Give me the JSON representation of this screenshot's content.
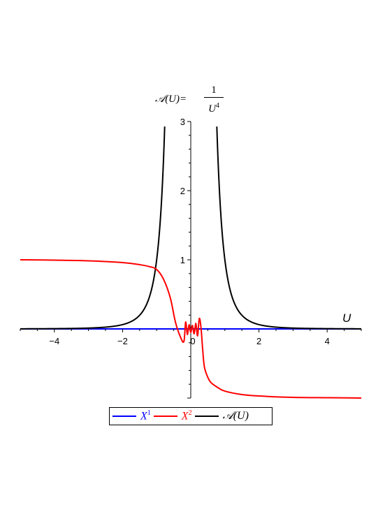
{
  "chart_data": {
    "type": "line",
    "title": {
      "lhs": "𝒜(U)=",
      "numerator": "1",
      "denominator_base": "U",
      "denominator_exp": "4"
    },
    "xlabel": "U",
    "ylabel": "",
    "xlim": [
      -5,
      5
    ],
    "ylim": [
      -1,
      3
    ],
    "x_ticks": [
      -4,
      -2,
      0,
      2,
      4
    ],
    "x_tick_labels": [
      "−4",
      "−2",
      "0",
      "2",
      "4"
    ],
    "y_ticks": [
      1,
      2,
      3
    ],
    "y_tick_labels": [
      "1",
      "2",
      "3"
    ],
    "grid": false,
    "legend_position": "bottom-center",
    "series": [
      {
        "name": "X",
        "name_sup": "1",
        "color": "#0000ff",
        "x": [
          -5,
          5
        ],
        "y": [
          0,
          0
        ]
      },
      {
        "name": "X",
        "name_sup": "2",
        "color": "#ff0000",
        "x": [
          -5,
          -4,
          -3,
          -2,
          -1.5,
          -1.2,
          -1,
          -0.8,
          -0.6,
          -0.45,
          -0.3,
          -0.2,
          -0.15,
          -0.1,
          -0.05,
          0,
          0.05,
          0.1,
          0.15,
          0.2,
          0.25,
          0.3,
          0.35,
          0.4,
          0.5,
          0.6,
          0.8,
          1,
          1.5,
          2,
          3,
          4,
          5
        ],
        "y": [
          1,
          0.995,
          0.985,
          0.96,
          0.93,
          0.9,
          0.86,
          0.72,
          0.45,
          0.1,
          -0.12,
          -0.18,
          0.1,
          -0.08,
          0.06,
          -0.05,
          0.05,
          -0.07,
          0.08,
          -0.1,
          0.15,
          0.02,
          -0.3,
          -0.55,
          -0.7,
          -0.78,
          -0.85,
          -0.9,
          -0.95,
          -0.97,
          -0.99,
          -0.995,
          -1
        ]
      },
      {
        "name": "𝒜(U)",
        "color": "#000000",
        "formula": "1/U^4"
      }
    ]
  }
}
